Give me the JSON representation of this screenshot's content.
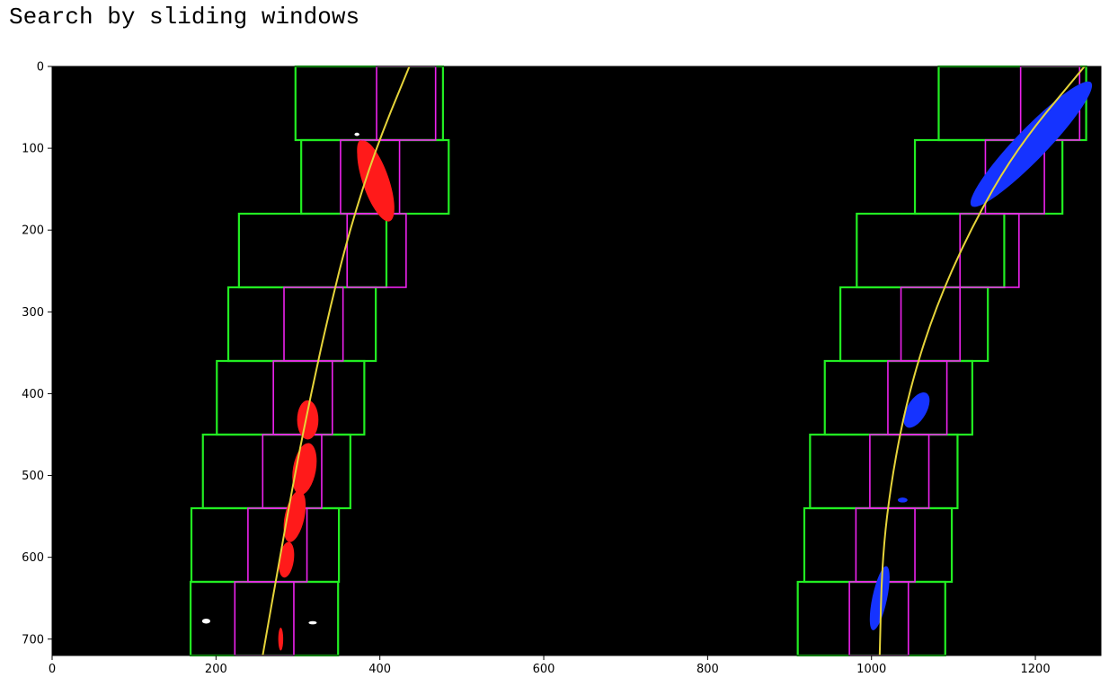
{
  "title": "Search by sliding windows",
  "chart_data": {
    "type": "image-overlay",
    "title": "",
    "xlabel": "",
    "ylabel": "",
    "xlim": [
      0,
      1280
    ],
    "ylim": [
      720,
      0
    ],
    "xticks": [
      0,
      200,
      400,
      600,
      800,
      1000,
      1200
    ],
    "yticks": [
      0,
      100,
      200,
      300,
      400,
      500,
      600,
      700
    ],
    "grid": false,
    "colors": {
      "background": "#000000",
      "window_initial": "#22ee22",
      "window_refined": "#ee22ee",
      "left_pixels": "#ff1a1a",
      "right_pixels": "#1533ff",
      "fit_curve": "#e6d43a",
      "stray_pixels": "#ffffff"
    },
    "windows_initial": {
      "left": [
        {
          "y0": 0,
          "y1": 90,
          "x0": 297,
          "x1": 477
        },
        {
          "y0": 90,
          "y1": 180,
          "x0": 304,
          "x1": 484
        },
        {
          "y0": 180,
          "y1": 270,
          "x0": 228,
          "x1": 408
        },
        {
          "y0": 270,
          "y1": 360,
          "x0": 215,
          "x1": 395
        },
        {
          "y0": 360,
          "y1": 450,
          "x0": 201,
          "x1": 381
        },
        {
          "y0": 450,
          "y1": 540,
          "x0": 184,
          "x1": 364
        },
        {
          "y0": 540,
          "y1": 630,
          "x0": 170,
          "x1": 350
        },
        {
          "y0": 630,
          "y1": 720,
          "x0": 169,
          "x1": 349
        }
      ],
      "right": [
        {
          "y0": 0,
          "y1": 90,
          "x0": 1082,
          "x1": 1262
        },
        {
          "y0": 90,
          "y1": 180,
          "x0": 1053,
          "x1": 1233
        },
        {
          "y0": 180,
          "y1": 270,
          "x0": 982,
          "x1": 1162
        },
        {
          "y0": 270,
          "y1": 360,
          "x0": 962,
          "x1": 1142
        },
        {
          "y0": 360,
          "y1": 450,
          "x0": 943,
          "x1": 1123
        },
        {
          "y0": 450,
          "y1": 540,
          "x0": 925,
          "x1": 1105
        },
        {
          "y0": 540,
          "y1": 630,
          "x0": 918,
          "x1": 1098
        },
        {
          "y0": 630,
          "y1": 720,
          "x0": 910,
          "x1": 1090
        }
      ]
    },
    "windows_refined": {
      "left": [
        {
          "y0": 0,
          "y1": 90,
          "x0": 396,
          "x1": 468
        },
        {
          "y0": 90,
          "y1": 180,
          "x0": 352,
          "x1": 424
        },
        {
          "y0": 180,
          "y1": 270,
          "x0": 360,
          "x1": 432
        },
        {
          "y0": 270,
          "y1": 360,
          "x0": 283,
          "x1": 355
        },
        {
          "y0": 360,
          "y1": 450,
          "x0": 270,
          "x1": 342
        },
        {
          "y0": 450,
          "y1": 540,
          "x0": 257,
          "x1": 329
        },
        {
          "y0": 540,
          "y1": 630,
          "x0": 239,
          "x1": 311
        },
        {
          "y0": 630,
          "y1": 720,
          "x0": 223,
          "x1": 295
        }
      ],
      "right": [
        {
          "y0": 0,
          "y1": 90,
          "x0": 1182,
          "x1": 1254
        },
        {
          "y0": 90,
          "y1": 180,
          "x0": 1139,
          "x1": 1211
        },
        {
          "y0": 180,
          "y1": 270,
          "x0": 1108,
          "x1": 1180
        },
        {
          "y0": 270,
          "y1": 360,
          "x0": 1036,
          "x1": 1108
        },
        {
          "y0": 360,
          "y1": 450,
          "x0": 1020,
          "x1": 1092
        },
        {
          "y0": 450,
          "y1": 540,
          "x0": 998,
          "x1": 1070
        },
        {
          "y0": 540,
          "y1": 630,
          "x0": 981,
          "x1": 1053
        },
        {
          "y0": 630,
          "y1": 720,
          "x0": 973,
          "x1": 1045
        }
      ]
    },
    "left_pixel_blobs": [
      {
        "cx": 395,
        "cy": 140,
        "rx": 16,
        "ry": 52,
        "rot": -19
      },
      {
        "cx": 380,
        "cy": 112,
        "rx": 7,
        "ry": 22,
        "rot": -10
      },
      {
        "cx": 312,
        "cy": 432,
        "rx": 13,
        "ry": 24,
        "rot": 0
      },
      {
        "cx": 308,
        "cy": 492,
        "rx": 14,
        "ry": 32,
        "rot": 10
      },
      {
        "cx": 296,
        "cy": 550,
        "rx": 12,
        "ry": 32,
        "rot": 12
      },
      {
        "cx": 286,
        "cy": 603,
        "rx": 9,
        "ry": 22,
        "rot": 8
      },
      {
        "cx": 279,
        "cy": 700,
        "rx": 3,
        "ry": 14,
        "rot": 0
      }
    ],
    "right_pixel_blobs": [
      {
        "cx": 1195,
        "cy": 95,
        "rx": 19,
        "ry": 105,
        "rot": 44
      },
      {
        "cx": 1055,
        "cy": 420,
        "rx": 12,
        "ry": 24,
        "rot": 30
      },
      {
        "cx": 1038,
        "cy": 530,
        "rx": 6,
        "ry": 3,
        "rot": 0
      },
      {
        "cx": 1010,
        "cy": 650,
        "rx": 9,
        "ry": 40,
        "rot": 12
      }
    ],
    "stray_pixel_blobs": [
      {
        "cx": 188,
        "cy": 678,
        "rx": 5,
        "ry": 3
      },
      {
        "cx": 318,
        "cy": 680,
        "rx": 5,
        "ry": 2
      },
      {
        "cx": 372,
        "cy": 83,
        "rx": 3,
        "ry": 2
      }
    ],
    "fit_curves": [
      {
        "lane": "left",
        "points": [
          [
            436,
            0
          ],
          [
            395,
            100
          ],
          [
            363,
            200
          ],
          [
            338,
            300
          ],
          [
            316,
            400
          ],
          [
            296,
            500
          ],
          [
            278,
            600
          ],
          [
            257,
            720
          ]
        ]
      },
      {
        "lane": "right",
        "points": [
          [
            1260,
            0
          ],
          [
            1177,
            100
          ],
          [
            1120,
            200
          ],
          [
            1076,
            300
          ],
          [
            1045,
            400
          ],
          [
            1025,
            500
          ],
          [
            1013,
            600
          ],
          [
            1010,
            720
          ]
        ]
      }
    ]
  }
}
